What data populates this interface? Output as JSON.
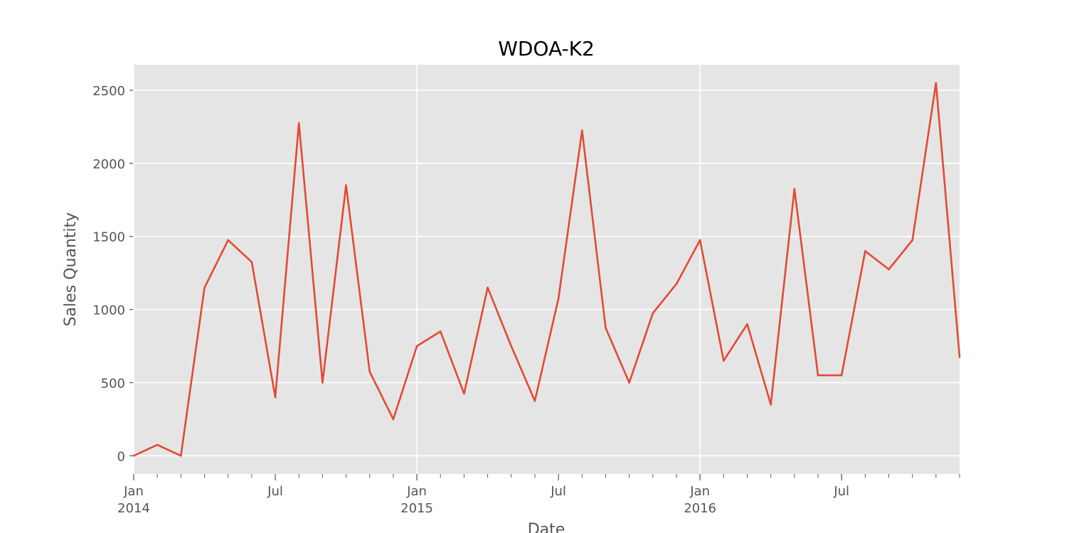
{
  "chart_data": {
    "type": "line",
    "title": "WDOA-K2",
    "xlabel": "Date",
    "ylabel": "Sales Quantity",
    "x": [
      "2014-01",
      "2014-02",
      "2014-03",
      "2014-04",
      "2014-05",
      "2014-06",
      "2014-07",
      "2014-08",
      "2014-09",
      "2014-10",
      "2014-11",
      "2014-12",
      "2015-01",
      "2015-02",
      "2015-03",
      "2015-04",
      "2015-05",
      "2015-06",
      "2015-07",
      "2015-08",
      "2015-09",
      "2015-10",
      "2015-11",
      "2015-12",
      "2016-01",
      "2016-02",
      "2016-03",
      "2016-04",
      "2016-05",
      "2016-06",
      "2016-07",
      "2016-08",
      "2016-09",
      "2016-10",
      "2016-11",
      "2016-12"
    ],
    "series": [
      {
        "values": [
          0,
          75,
          0,
          1150,
          1475,
          1325,
          400,
          2275,
          500,
          1850,
          575,
          250,
          750,
          850,
          425,
          1150,
          750,
          375,
          1075,
          2225,
          875,
          500,
          975,
          1175,
          1475,
          650,
          900,
          350,
          1825,
          550,
          550,
          1400,
          1275,
          1475,
          2550,
          675
        ],
        "color": "#E24A33"
      }
    ],
    "ylim": [
      -125,
      2675
    ],
    "yticks": [
      0,
      500,
      1000,
      1500,
      2000,
      2500
    ],
    "xticks_major": [
      {
        "date": "2014-01",
        "label": "Jan",
        "year": "2014"
      },
      {
        "date": "2014-07",
        "label": "Jul",
        "year": ""
      },
      {
        "date": "2015-01",
        "label": "Jan",
        "year": "2015"
      },
      {
        "date": "2015-07",
        "label": "Jul",
        "year": ""
      },
      {
        "date": "2016-01",
        "label": "Jan",
        "year": "2016"
      },
      {
        "date": "2016-07",
        "label": "Jul",
        "year": ""
      }
    ],
    "grid": true,
    "style": {
      "plot_background": "#E5E5E5",
      "grid_color": "#FFFFFF",
      "text_color": "#555555"
    }
  }
}
